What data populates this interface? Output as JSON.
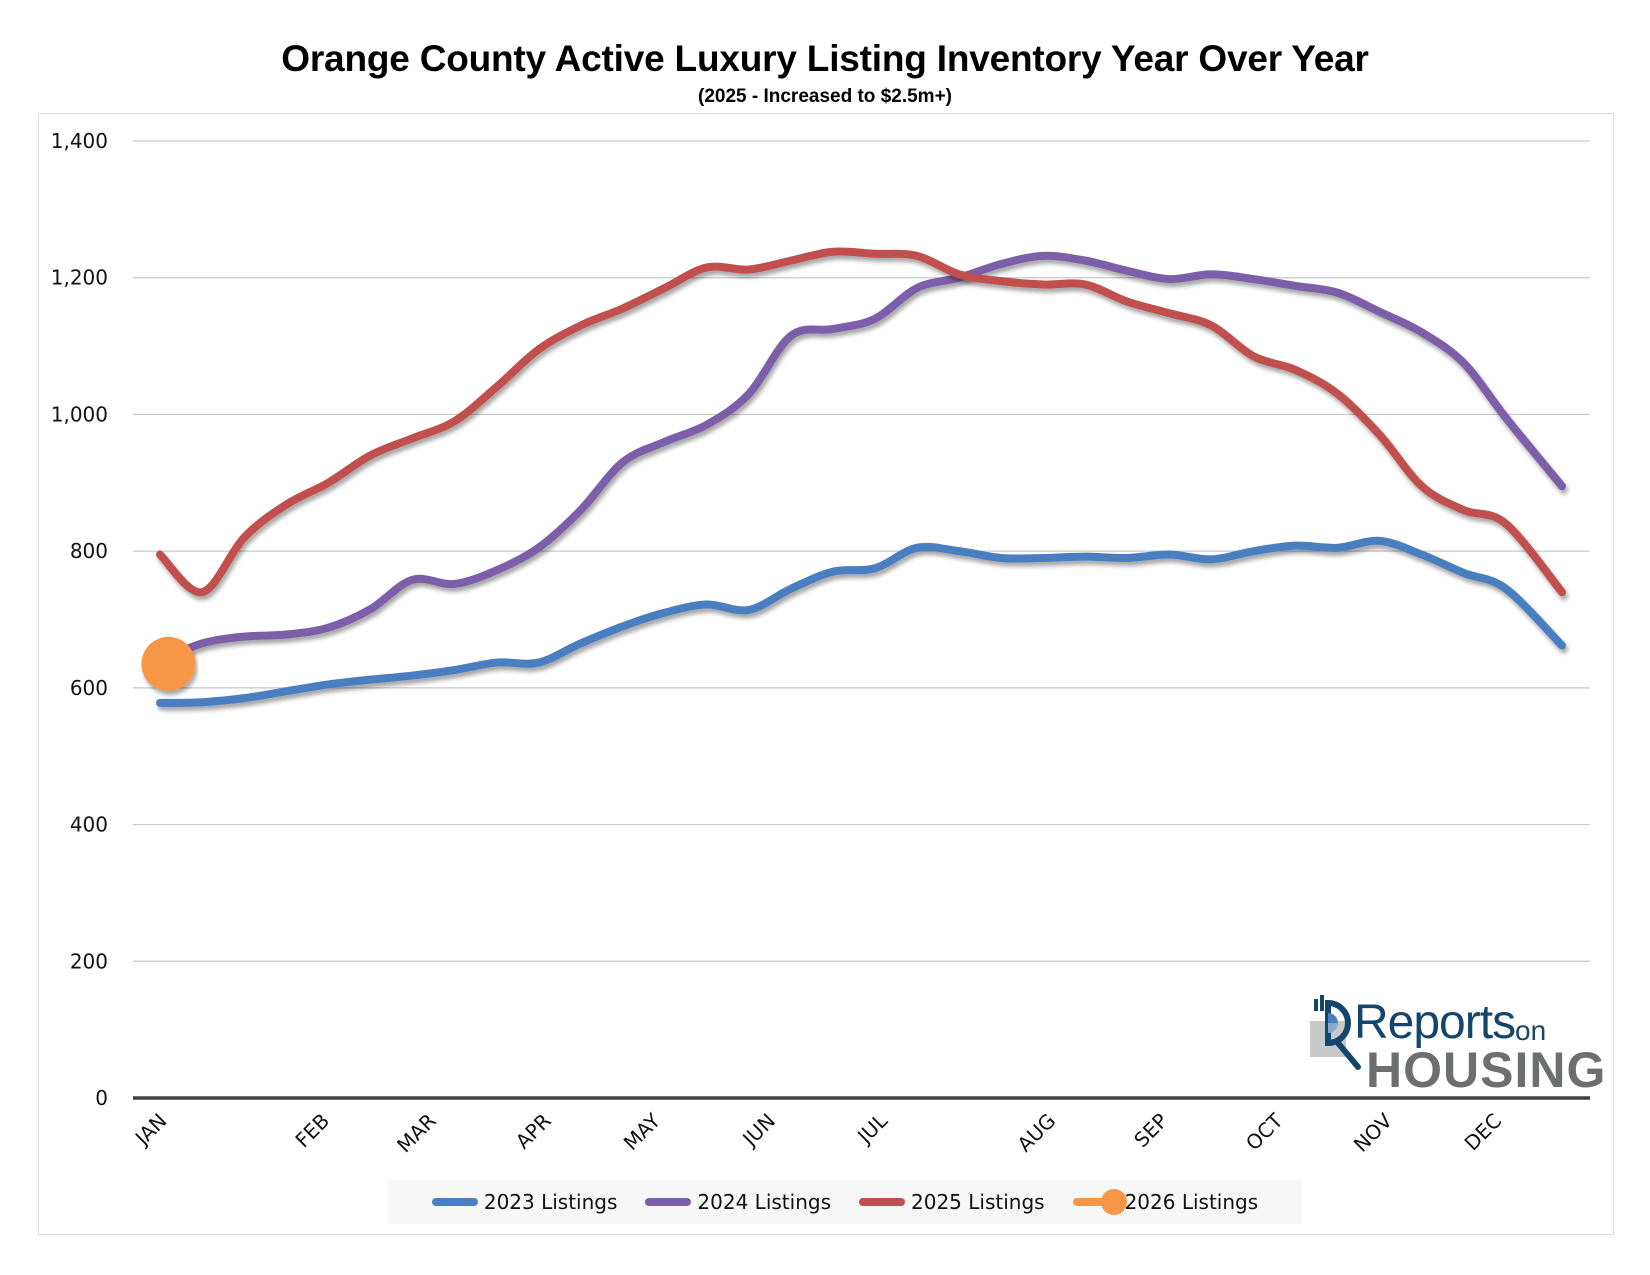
{
  "title": "Orange County Active Luxury Listing Inventory Year Over Year",
  "subtitle": "(2025 - Increased to $2.5m+)",
  "logo": {
    "reports": "Reports",
    "on": "on",
    "housing": "HOUSING",
    "icon": "magnifier-chart-icon"
  },
  "chart_data": {
    "type": "line",
    "title": "Orange County Active Luxury Listing Inventory Year Over Year",
    "subtitle": "(2025 - Increased to $2.5m+)",
    "xlabel": "",
    "ylabel": "",
    "ylim": [
      0,
      1400
    ],
    "xlim": [
      0,
      50
    ],
    "yticks": [
      0,
      200,
      400,
      600,
      800,
      1000,
      1200,
      1400
    ],
    "ytick_labels": [
      "0",
      "200",
      "400",
      "600",
      "800",
      "1,000",
      "1,200",
      "1,400"
    ],
    "month_ticks": [
      {
        "label": "JAN",
        "x": 0
      },
      {
        "label": "FEB",
        "x": 5.8
      },
      {
        "label": "MAR",
        "x": 9.6
      },
      {
        "label": "APR",
        "x": 13.7
      },
      {
        "label": "MAY",
        "x": 17.6
      },
      {
        "label": "JUN",
        "x": 21.7
      },
      {
        "label": "JUL",
        "x": 25.7
      },
      {
        "label": "AUG",
        "x": 31.7
      },
      {
        "label": "SEP",
        "x": 35.7
      },
      {
        "label": "OCT",
        "x": 39.8
      },
      {
        "label": "NOV",
        "x": 43.7
      },
      {
        "label": "DEC",
        "x": 47.6
      }
    ],
    "grid": true,
    "legend_position": "bottom",
    "series": [
      {
        "name": "2023 Listings",
        "color": "#4a7fc1",
        "x": [
          0,
          1.5,
          3,
          4.5,
          6,
          7.5,
          9,
          10.5,
          12,
          13.5,
          15,
          16.5,
          18,
          19.5,
          21,
          22.5,
          24,
          25.5,
          27,
          28.5,
          30,
          31.5,
          33,
          34.5,
          36,
          37.5,
          39,
          40.5,
          42,
          43.5,
          45,
          46.5,
          48,
          50
        ],
        "values": [
          578,
          579,
          585,
          595,
          605,
          612,
          618,
          626,
          637,
          637,
          665,
          690,
          710,
          722,
          714,
          745,
          770,
          775,
          805,
          800,
          790,
          790,
          792,
          790,
          795,
          788,
          800,
          808,
          805,
          815,
          795,
          768,
          745,
          662
        ]
      },
      {
        "name": "2024 Listings",
        "color": "#7c5fa8",
        "x": [
          0,
          1.5,
          3,
          4.5,
          6,
          7.5,
          9,
          10.5,
          12,
          13.5,
          15,
          16.5,
          18,
          19.5,
          21,
          22.5,
          24,
          25.5,
          27,
          28.5,
          30,
          31.5,
          33,
          34.5,
          36,
          37.5,
          39,
          40.5,
          42,
          43.5,
          45,
          46.5,
          48,
          50
        ],
        "values": [
          640,
          665,
          675,
          678,
          688,
          715,
          758,
          752,
          772,
          805,
          860,
          930,
          960,
          985,
          1030,
          1115,
          1125,
          1140,
          1185,
          1200,
          1220,
          1232,
          1225,
          1210,
          1198,
          1205,
          1198,
          1188,
          1178,
          1150,
          1120,
          1075,
          995,
          895
        ]
      },
      {
        "name": "2025 Listings",
        "color": "#c0504d",
        "x": [
          0,
          1.5,
          3,
          4.5,
          6,
          7.5,
          9,
          10.5,
          12,
          13.5,
          15,
          16.5,
          18,
          19.5,
          21,
          22.5,
          24,
          25.5,
          27,
          28.5,
          30,
          31.5,
          33,
          34.5,
          36,
          37.5,
          39,
          40.5,
          42,
          43.5,
          45,
          46.5,
          48,
          50
        ],
        "values": [
          795,
          740,
          820,
          868,
          900,
          940,
          965,
          990,
          1040,
          1095,
          1130,
          1155,
          1185,
          1215,
          1212,
          1225,
          1238,
          1235,
          1232,
          1205,
          1195,
          1190,
          1190,
          1165,
          1148,
          1130,
          1085,
          1065,
          1030,
          970,
          895,
          860,
          840,
          740
        ]
      },
      {
        "name": "2026 Listings",
        "color": "#f79646",
        "x": [
          0.3
        ],
        "values": [
          635
        ]
      }
    ]
  },
  "legend": [
    {
      "label": "2023 Listings",
      "color": "#4a7fc1",
      "marker": false
    },
    {
      "label": "2024 Listings",
      "color": "#7c5fa8",
      "marker": false
    },
    {
      "label": "2025 Listings",
      "color": "#c0504d",
      "marker": false
    },
    {
      "label": "2026 Listings",
      "color": "#f79646",
      "marker": true
    }
  ]
}
